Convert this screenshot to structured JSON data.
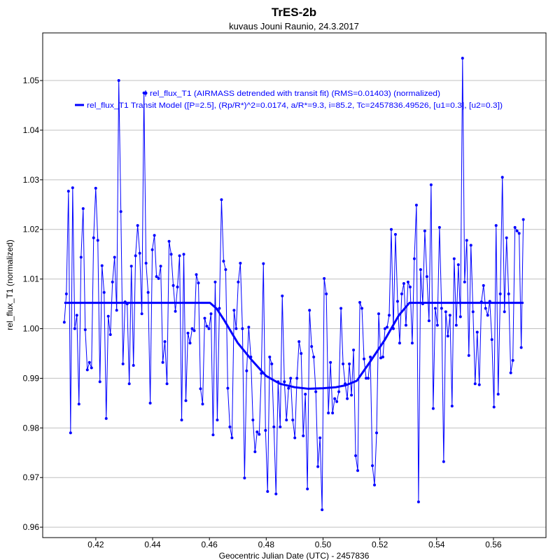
{
  "chart_data": {
    "type": "line",
    "title": "TrES-2b",
    "subtitle": "kuvaus Jouni Raunio, 24.3.2017",
    "xlabel": "Geocentric Julian Date (UTC) - 2457836",
    "ylabel": "rel_flux_T1 (normalized)",
    "xlim": [
      0.4013,
      0.5785
    ],
    "ylim": [
      0.9579,
      1.0596
    ],
    "xticks": [
      "0.42",
      "0.44",
      "0.46",
      "0.48",
      "0.50",
      "0.52",
      "0.54",
      "0.56"
    ],
    "yticks": [
      "0.96",
      "0.97",
      "0.98",
      "0.99",
      "1.00",
      "1.01",
      "1.02",
      "1.03",
      "1.04",
      "1.05"
    ],
    "grid": "horizontal",
    "legend_placement": "top-center",
    "colors": {
      "data": "#0000ff",
      "model": "#0000ff",
      "grid": "#c0c0c0"
    },
    "series": [
      {
        "name": "rel_flux_T1 (AIRMASS detrended with transit fit) (RMS=0.01403) (normalized)",
        "style": "line-with-points",
        "x_start": 0.4089,
        "x_step": 0.000738,
        "y": [
          1.0013,
          1.007,
          1.0277,
          0.979,
          1.0284,
          1.0,
          1.0027,
          0.9848,
          1.0144,
          1.0242,
          0.9998,
          0.9917,
          0.9932,
          0.9921,
          1.0183,
          1.0283,
          1.0178,
          0.9893,
          1.0127,
          1.0073,
          0.9819,
          1.0025,
          0.9988,
          1.0094,
          1.0144,
          1.0037,
          1.05,
          1.0236,
          0.9929,
          1.0054,
          1.005,
          0.9889,
          1.0126,
          0.9926,
          1.0147,
          1.0208,
          1.0152,
          1.003,
          1.0475,
          1.0132,
          1.0073,
          0.985,
          1.0159,
          1.0188,
          1.0105,
          1.0101,
          1.0126,
          0.9932,
          0.9974,
          0.9889,
          1.0176,
          1.015,
          1.0087,
          1.0035,
          1.0084,
          1.0147,
          0.9816,
          1.015,
          0.9855,
          0.9991,
          0.9971,
          1.0,
          0.9996,
          1.0109,
          1.0092,
          0.9879,
          0.9848,
          1.0021,
          1.0005,
          1.0,
          1.003,
          0.9786,
          1.0094,
          0.9816,
          1.0041,
          1.026,
          1.0136,
          1.0119,
          0.988,
          0.9802,
          0.978,
          1.0037,
          1.0,
          1.0094,
          1.0132,
          1.0,
          0.9699,
          0.9915,
          1.0003,
          0.9943,
          0.9816,
          0.9752,
          0.9792,
          0.9787,
          0.991,
          1.0131,
          0.9795,
          0.9672,
          0.9943,
          0.9929,
          0.9802,
          0.9667,
          0.9893,
          0.9802,
          1.0066,
          0.9893,
          0.9816,
          0.988,
          0.99,
          0.9816,
          0.978,
          0.99,
          0.9974,
          0.995,
          0.9784,
          0.9868,
          0.9677,
          1.0037,
          0.9964,
          0.9943,
          0.9873,
          0.9722,
          0.978,
          0.9635,
          1.0101,
          1.007,
          0.983,
          0.9932,
          0.983,
          0.9859,
          0.9853,
          0.9873,
          1.0041,
          0.9929,
          0.9889,
          0.9859,
          0.9929,
          0.9866,
          0.9957,
          0.9744,
          0.9714,
          1.0053,
          1.0041,
          0.9939,
          0.99,
          0.99,
          0.9943,
          0.9724,
          0.9685,
          0.979,
          1.003,
          0.9941,
          0.9943,
          1.0,
          1.0003,
          1.0027,
          1.02,
          1.0,
          1.019,
          1.0055,
          0.9971,
          1.007,
          1.0091,
          1.0007,
          1.0094,
          1.0084,
          0.9971,
          1.0141,
          1.0249,
          0.9651,
          1.0119,
          1.005,
          1.0197,
          1.0105,
          1.0016,
          1.029,
          0.9839,
          1.0041,
          1.0007,
          1.0204,
          1.0041,
          0.9732,
          1.0034,
          0.9985,
          1.0027,
          0.9844,
          1.0141,
          1.0007,
          1.0129,
          1.0024,
          1.0545,
          1.0094,
          1.0178,
          0.9946,
          1.0168,
          1.0034,
          0.9889,
          0.9993,
          0.9887,
          1.0054,
          1.0087,
          1.0041,
          1.0027,
          1.0055,
          0.9978,
          0.9842,
          1.0208,
          0.9868,
          1.007,
          1.0305,
          1.0034,
          1.0183,
          1.007,
          0.9911,
          0.9936,
          1.0204,
          1.0197,
          1.0192,
          0.9962,
          1.022
        ]
      },
      {
        "name": "rel_flux_T1 Transit Model ([P=2.5], (Rp/R*)^2=0.0174, a/R*=9.3, i=85.2, Tc=2457836.49526, [u1=0.3], [u2=0.3])",
        "style": "thick-line",
        "x": [
          0.4089,
          0.4602,
          0.4626,
          0.4651,
          0.47,
          0.475,
          0.4799,
          0.4848,
          0.49,
          0.4947,
          0.5,
          0.5045,
          0.508,
          0.5119,
          0.5169,
          0.5218,
          0.5267,
          0.5304,
          0.5706
        ],
        "y": [
          1.0052,
          1.0052,
          1.004,
          1.0018,
          0.9971,
          0.9936,
          0.9905,
          0.9889,
          0.9882,
          0.9879,
          0.988,
          0.9882,
          0.9886,
          0.9895,
          0.9936,
          0.9978,
          1.0027,
          1.0052,
          1.0052
        ]
      }
    ]
  }
}
